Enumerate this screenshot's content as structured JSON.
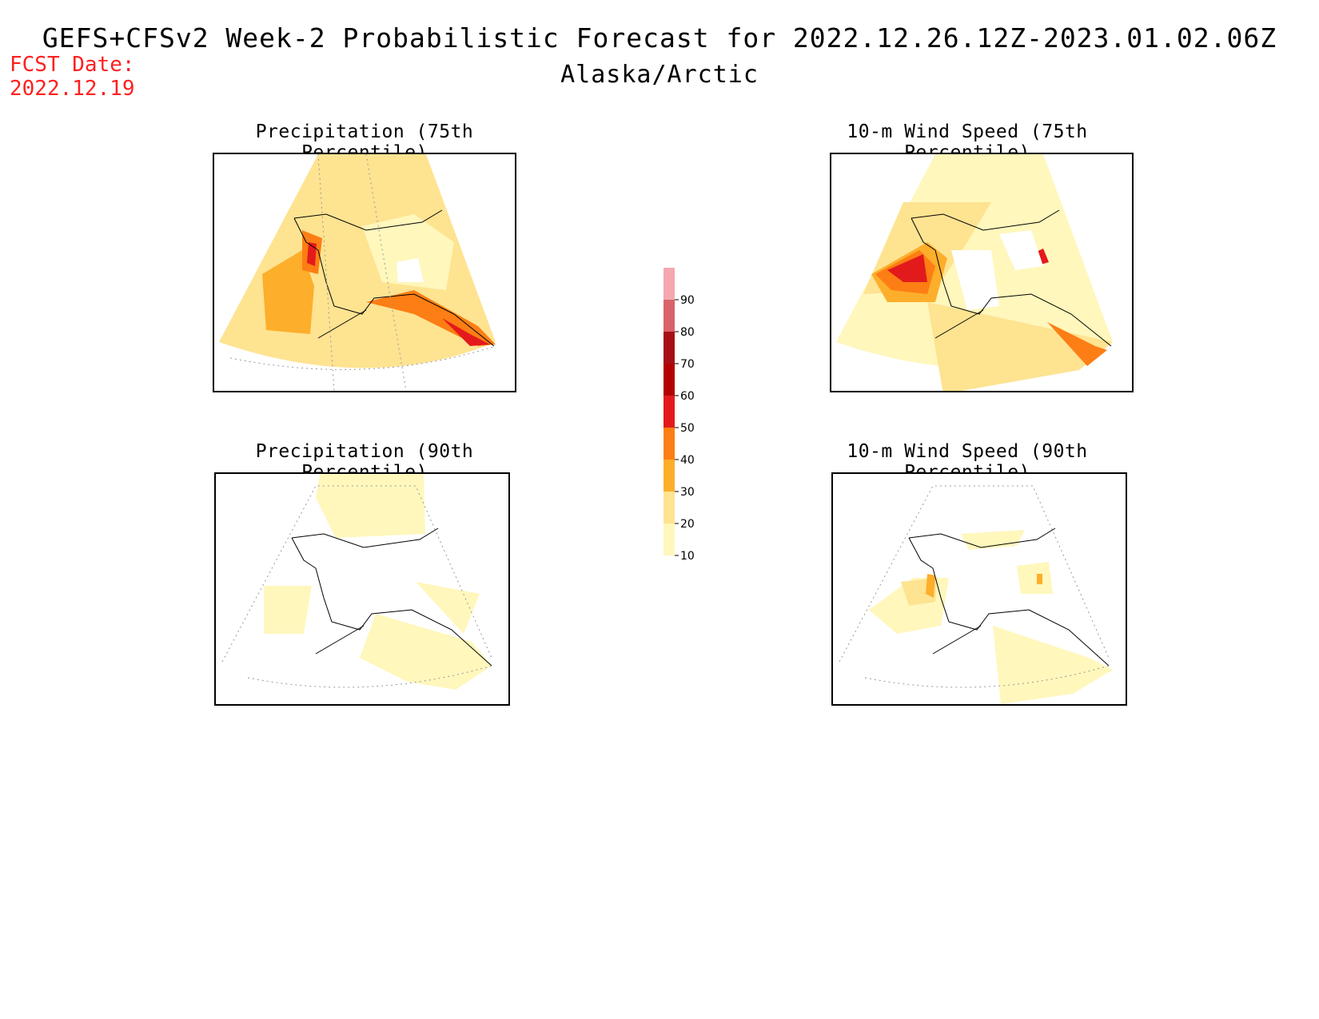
{
  "header": {
    "title": "GEFS+CFSv2 Week-2 Probabilistic Forecast for 2022.12.26.12Z-2023.01.02.06Z",
    "subtitle": "Alaska/Arctic",
    "fcst_line1": "FCST Date:",
    "fcst_line2": "2022.12.19"
  },
  "panels": {
    "p1": {
      "title": "Precipitation (75th Percentile)"
    },
    "p2": {
      "title": "10-m Wind Speed (75th Percentile)"
    },
    "p3": {
      "title": "Precipitation (90th Percentile)"
    },
    "p4": {
      "title": "10-m Wind Speed (90th Percentile)"
    }
  },
  "colorbar": {
    "levels": [
      "10",
      "20",
      "30",
      "40",
      "50",
      "60",
      "70",
      "80",
      "90"
    ],
    "colors": [
      "#fff7bc",
      "#fee391",
      "#fdae2b",
      "#fd7e14",
      "#e31a1c",
      "#b30000",
      "#a50f15",
      "#d9626b",
      "#f4a8b0",
      "#fde4e6"
    ]
  }
}
